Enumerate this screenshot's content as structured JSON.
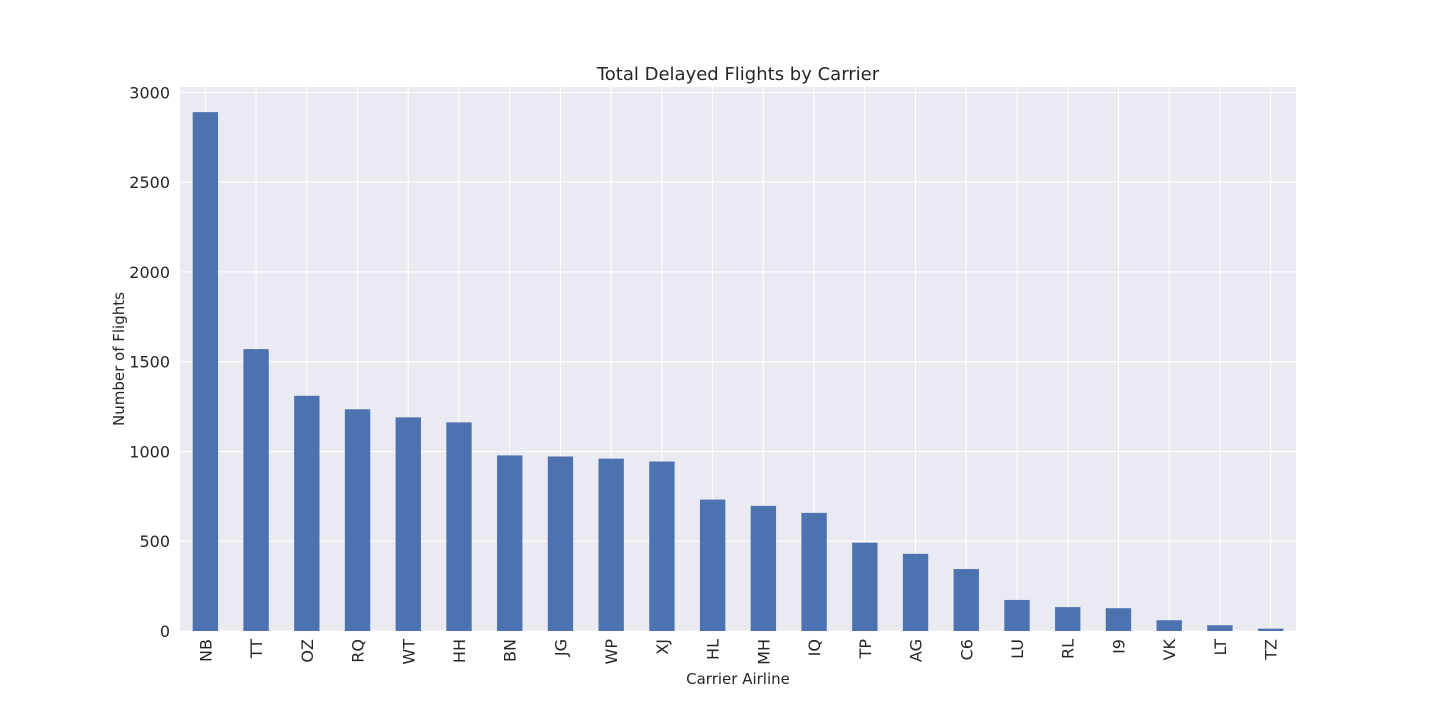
{
  "chart_data": {
    "type": "bar",
    "title": "Total Delayed Flights by Carrier",
    "xlabel": "Carrier Airline",
    "ylabel": "Number of Flights",
    "categories": [
      "NB",
      "TT",
      "OZ",
      "RQ",
      "WT",
      "HH",
      "BN",
      "JG",
      "WP",
      "XJ",
      "HL",
      "MH",
      "IQ",
      "TP",
      "AG",
      "C6",
      "LU",
      "RL",
      "I9",
      "VK",
      "LT",
      "TZ"
    ],
    "values": [
      2890,
      1570,
      1310,
      1235,
      1190,
      1162,
      978,
      972,
      960,
      944,
      732,
      697,
      658,
      492,
      430,
      345,
      173,
      133,
      127,
      60,
      32,
      13
    ],
    "ylim": [
      0,
      3030
    ],
    "yticks": [
      0,
      500,
      1000,
      1500,
      2000,
      2500,
      3000
    ],
    "grid": true,
    "legend": "none",
    "colors": {
      "bar": "#4c72b0",
      "plot_background": "#eaeaf2",
      "grid": "#ffffff",
      "text": "#262626"
    }
  }
}
